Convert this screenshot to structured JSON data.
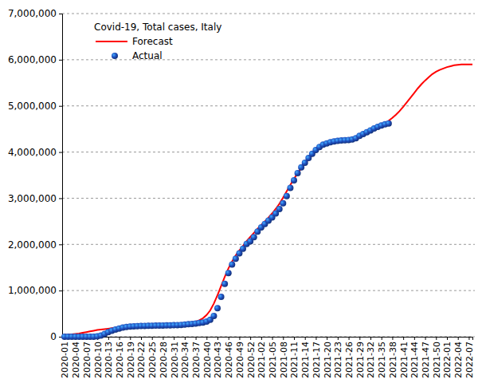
{
  "chart_data": {
    "type": "line",
    "title": "Covid-19, Total cases, Italy",
    "categories": [
      "2020-01",
      null,
      null,
      "2020-04",
      null,
      null,
      "2020-07",
      null,
      null,
      "2020-10",
      null,
      null,
      "2020-13",
      null,
      null,
      "2020-16",
      null,
      null,
      "2020-19",
      null,
      null,
      "2020-22",
      null,
      null,
      "2020-25",
      null,
      null,
      "2020-28",
      null,
      null,
      "2020-31",
      null,
      null,
      "2020-34",
      null,
      null,
      "2020-37",
      null,
      null,
      "2020-40",
      null,
      null,
      "2020-43",
      null,
      null,
      "2020-46",
      null,
      null,
      "2020-49",
      null,
      null,
      "2020-52",
      null,
      null,
      "2021-02",
      null,
      null,
      "2021-05",
      null,
      null,
      "2021-08",
      null,
      null,
      "2021-11",
      null,
      null,
      "2021-14",
      null,
      null,
      "2021-17",
      null,
      null,
      "2021-20",
      null,
      null,
      "2021-23",
      null,
      null,
      "2021-26",
      null,
      null,
      "2021-29",
      null,
      null,
      "2021-32",
      null,
      null,
      "2021-35",
      null,
      null,
      "2021-38",
      null,
      null,
      "2021-41",
      null,
      null,
      "2021-44",
      null,
      null,
      "2021-47",
      null,
      null,
      "2021-50",
      null,
      null,
      "2022-01",
      null,
      null,
      "2022-04",
      null,
      null,
      "2022-07",
      null
    ],
    "series": [
      {
        "name": "Forecast",
        "type": "line",
        "color": "#ff0000",
        "line_style": "solid",
        "values": [
          40000,
          45000,
          50000,
          60000,
          70000,
          85000,
          100000,
          115000,
          130000,
          145000,
          155000,
          165000,
          175000,
          185000,
          195000,
          205000,
          215000,
          222000,
          228000,
          232000,
          236000,
          239000,
          242000,
          244000,
          246000,
          248000,
          250000,
          252000,
          254000,
          257000,
          260000,
          264000,
          270000,
          278000,
          290000,
          305000,
          325000,
          355000,
          400000,
          470000,
          570000,
          720000,
          900000,
          1100000,
          1300000,
          1480000,
          1630000,
          1760000,
          1870000,
          1970000,
          2070000,
          2160000,
          2250000,
          2340000,
          2420000,
          2500000,
          2580000,
          2670000,
          2770000,
          2880000,
          3010000,
          3150000,
          3290000,
          3420000,
          3540000,
          3650000,
          3750000,
          3840000,
          3930000,
          4010000,
          4080000,
          4140000,
          4180000,
          4210000,
          4230000,
          4245000,
          4255000,
          4265000,
          4275000,
          4290000,
          4315000,
          4350000,
          4390000,
          4430000,
          4470000,
          4510000,
          4550000,
          4590000,
          4630000,
          4680000,
          4740000,
          4810000,
          4890000,
          4980000,
          5080000,
          5180000,
          5280000,
          5380000,
          5470000,
          5550000,
          5620000,
          5690000,
          5740000,
          5780000,
          5810000,
          5840000,
          5860000,
          5880000,
          5890000,
          5900000,
          5900000,
          5900000,
          5900000
        ]
      },
      {
        "name": "Actual",
        "type": "scatter",
        "color": "#1f4fbf",
        "marker": "circle",
        "values": [
          0,
          0,
          0,
          0,
          0,
          0,
          0,
          0,
          1128,
          7375,
          24747,
          59138,
          97689,
          128948,
          156363,
          178972,
          197675,
          210717,
          219070,
          225435,
          230158,
          233197,
          235278,
          237290,
          238499,
          240436,
          241819,
          243230,
          244752,
          246488,
          248803,
          252235,
          257065,
          263949,
          270189,
          277634,
          286297,
          296569,
          308104,
          327586,
          365467,
          449648,
          616595,
          862681,
          1144552,
          1380531,
          1564532,
          1688939,
          1805873,
          1906377,
          2009317,
          2067487,
          2155446,
          2276491,
          2368733,
          2441854,
          2515507,
          2583790,
          2668266,
          2765687,
          2888923,
          3046762,
          3223142,
          3387886,
          3544957,
          3668264,
          3769814,
          3870131,
          3962674,
          4044762,
          4111210,
          4159122,
          4188190,
          4213055,
          4230153,
          4241760,
          4250902,
          4257289,
          4262511,
          4273417,
          4300000,
          4350000,
          4390000,
          4430000,
          4470000,
          4510000,
          4545000,
          4575000,
          4600000,
          4620000,
          null,
          null,
          null,
          null,
          null,
          null,
          null,
          null,
          null,
          null,
          null,
          null,
          null,
          null,
          null,
          null,
          null,
          null,
          null,
          null,
          null,
          null,
          null
        ]
      }
    ],
    "ylim": [
      0,
      7000000
    ],
    "yticks": [
      0,
      {
        "value": 1000000,
        "label": "1,000,000"
      },
      {
        "value": 2000000,
        "label": "2,000,000"
      },
      {
        "value": 3000000,
        "label": "3,000,000"
      },
      {
        "value": 4000000,
        "label": "4,000,000"
      },
      {
        "value": 5000000,
        "label": "5,000,000"
      },
      {
        "value": 6000000,
        "label": "6,000,000"
      },
      {
        "value": 7000000,
        "label": "7,000,000"
      }
    ],
    "grid": true,
    "legend": "upper left"
  }
}
